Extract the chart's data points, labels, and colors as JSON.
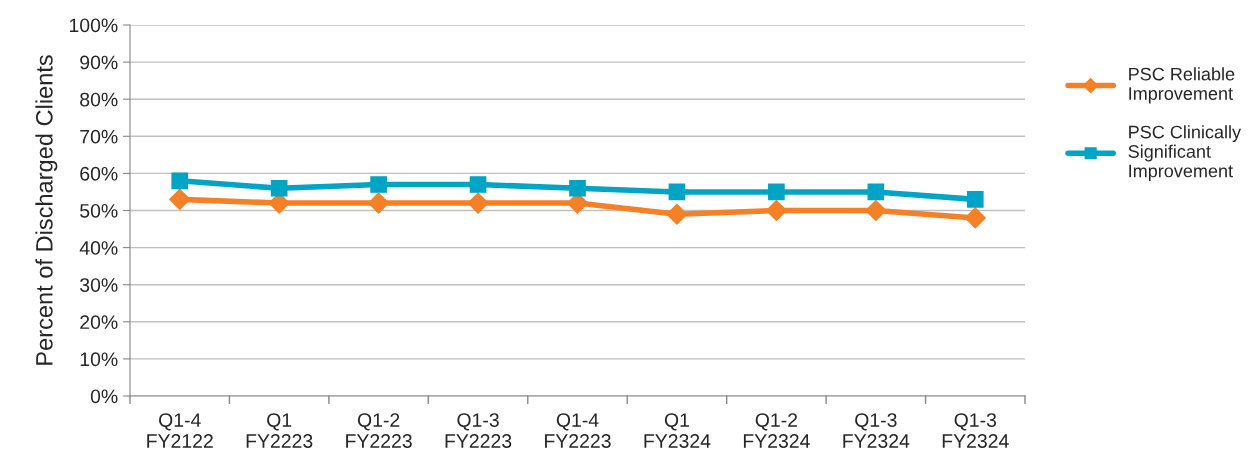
{
  "chart_data": {
    "type": "line",
    "ylabel": "Percent of Discharged Clients",
    "categories": [
      "Q1-4\nFY2122",
      "Q1\nFY2223",
      "Q1-2\nFY2223",
      "Q1-3\nFY2223",
      "Q1-4\nFY2223",
      "Q1\nFY2324",
      "Q1-2\nFY2324",
      "Q1-3\nFY2324",
      "Q1-3\nFY2324"
    ],
    "series": [
      {
        "name": "PSC Reliable Improvement",
        "color": "#f58025",
        "marker": "diamond",
        "values": [
          53,
          52,
          52,
          52,
          52,
          49,
          50,
          50,
          48
        ]
      },
      {
        "name": "PSC Clinically Significant Improvement",
        "color": "#00a5c5",
        "marker": "square",
        "values": [
          58,
          56,
          57,
          57,
          56,
          55,
          55,
          55,
          53
        ]
      }
    ],
    "ylim": [
      0,
      100
    ],
    "yticks": [
      {
        "value": 0,
        "label": "0%"
      },
      {
        "value": 10,
        "label": "10%"
      },
      {
        "value": 20,
        "label": "20%"
      },
      {
        "value": 30,
        "label": "30%"
      },
      {
        "value": 40,
        "label": "40%"
      },
      {
        "value": 50,
        "label": "50%"
      },
      {
        "value": 60,
        "label": "60%"
      },
      {
        "value": 70,
        "label": "70%"
      },
      {
        "value": 80,
        "label": "80%"
      },
      {
        "value": 90,
        "label": "90%"
      },
      {
        "value": 100,
        "label": "100%"
      }
    ],
    "grid": "y",
    "legend": "right",
    "line_style": "solid"
  }
}
